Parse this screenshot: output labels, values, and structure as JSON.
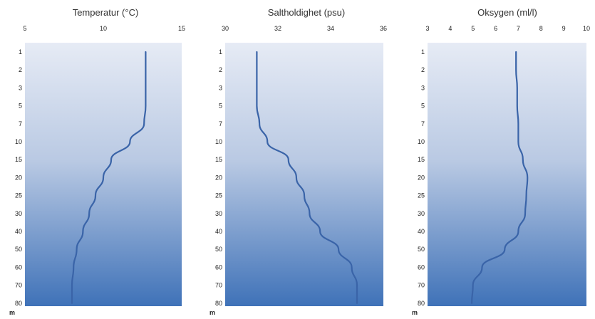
{
  "chart_data": [
    {
      "type": "line",
      "title": "Temperatur (°C)",
      "xlabel": "Temperatur (°C)",
      "ylabel": "m",
      "xlim": [
        5,
        15
      ],
      "xticks": [
        "5",
        "10",
        "15"
      ],
      "depth_labels": [
        "1",
        "2",
        "3",
        "5",
        "7",
        "10",
        "15",
        "20",
        "25",
        "30",
        "40",
        "50",
        "60",
        "70",
        "80"
      ],
      "series": [
        {
          "x": [
            12.7,
            12.7,
            12.7,
            12.7,
            12.6,
            11.7,
            10.5,
            10.0,
            9.5,
            9.1,
            8.7,
            8.3,
            8.1,
            8.0,
            8.0
          ],
          "y": [
            "1",
            "2",
            "3",
            "5",
            "7",
            "10",
            "15",
            "20",
            "25",
            "30",
            "40",
            "50",
            "60",
            "70",
            "80"
          ]
        }
      ],
      "grid": false
    },
    {
      "type": "line",
      "title": "Saltholdighet (psu)",
      "xlabel": "Saltholdighet (psu)",
      "ylabel": "m",
      "xlim": [
        30,
        36
      ],
      "xticks": [
        "30",
        "32",
        "34",
        "36"
      ],
      "depth_labels": [
        "1",
        "2",
        "3",
        "5",
        "7",
        "10",
        "15",
        "20",
        "25",
        "30",
        "40",
        "50",
        "60",
        "70",
        "80"
      ],
      "series": [
        {
          "x": [
            31.2,
            31.2,
            31.2,
            31.2,
            31.3,
            31.6,
            32.4,
            32.7,
            33.0,
            33.2,
            33.6,
            34.3,
            34.8,
            35.0,
            35.0
          ],
          "y": [
            "1",
            "2",
            "3",
            "5",
            "7",
            "10",
            "15",
            "20",
            "25",
            "30",
            "40",
            "50",
            "60",
            "70",
            "80"
          ]
        }
      ],
      "grid": false
    },
    {
      "type": "line",
      "title": "Oksygen (ml/l)",
      "xlabel": "Oksygen (ml/l)",
      "ylabel": "m",
      "xlim": [
        3,
        10
      ],
      "xticks": [
        "3",
        "4",
        "5",
        "6",
        "7",
        "8",
        "9",
        "10"
      ],
      "depth_labels": [
        "1",
        "2",
        "3",
        "5",
        "7",
        "10",
        "15",
        "20",
        "25",
        "30",
        "40",
        "50",
        "60",
        "70",
        "80"
      ],
      "series": [
        {
          "x": [
            6.9,
            6.9,
            6.95,
            6.95,
            7.0,
            7.0,
            7.2,
            7.4,
            7.35,
            7.3,
            7.0,
            6.4,
            5.4,
            5.0,
            4.95
          ],
          "y": [
            "1",
            "2",
            "3",
            "5",
            "7",
            "10",
            "15",
            "20",
            "25",
            "30",
            "40",
            "50",
            "60",
            "70",
            "80"
          ]
        }
      ],
      "grid": false
    }
  ],
  "colors": {
    "line": "#3a64a8",
    "panel_top": "#e6ebf5",
    "panel_bottom": "#3f72b8",
    "text": "#222222"
  }
}
